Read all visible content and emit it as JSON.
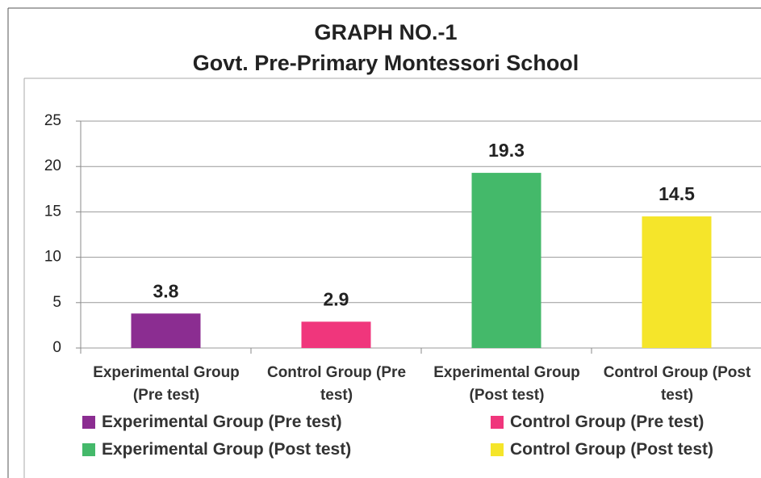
{
  "chart_data": {
    "type": "bar",
    "title": "GRAPH NO.-1",
    "subtitle": "Govt. Pre-Primary Montessori School",
    "categories": [
      "Experimental Group (Pre test)",
      "Control Group (Pre test)",
      "Experimental Group (Post test)",
      "Control Group (Post test)"
    ],
    "values": [
      3.8,
      2.9,
      19.3,
      14.5
    ],
    "colors": [
      "#8b2d91",
      "#f0367c",
      "#44b96a",
      "#f5e52a"
    ],
    "ylim": [
      0,
      25
    ],
    "yticks": [
      0,
      5,
      10,
      15,
      20,
      25
    ],
    "grid": true,
    "legend": "bottom"
  }
}
